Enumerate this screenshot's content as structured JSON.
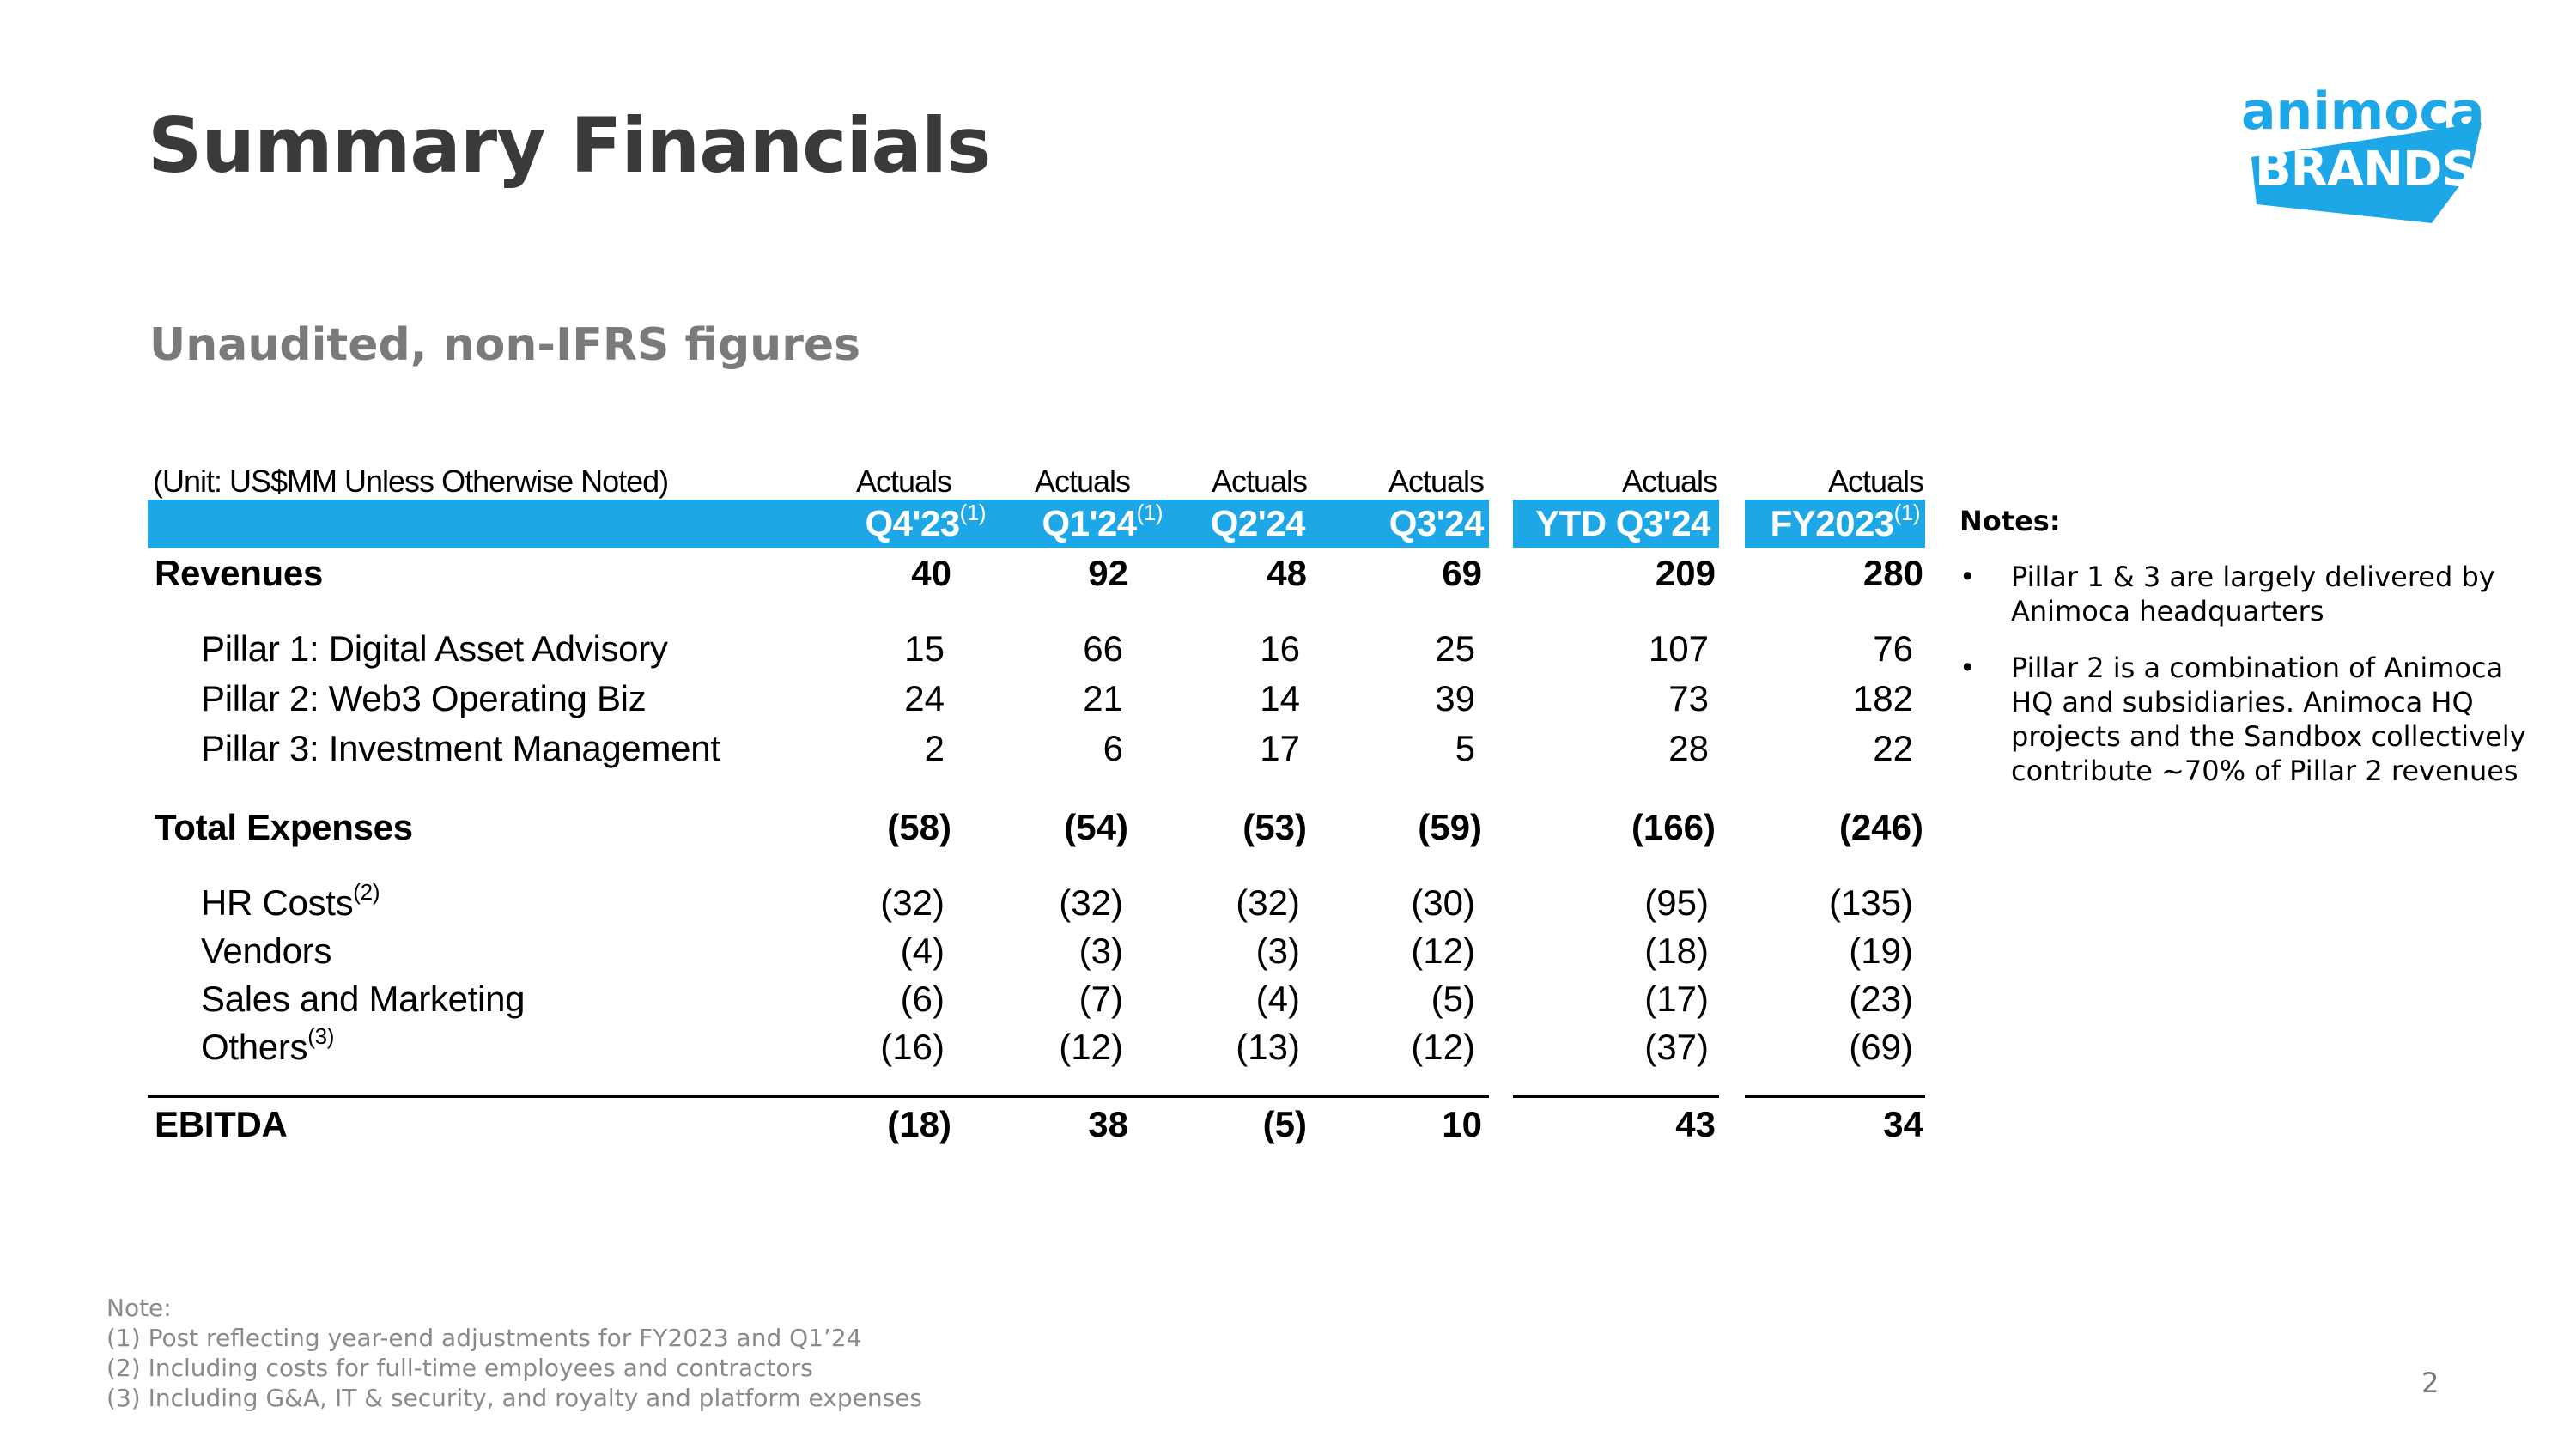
{
  "title": "Summary Financials",
  "subtitle": "Unaudited, non-IFRS figures",
  "logo": {
    "line1": "animoca",
    "line2": "BRANDS",
    "color": "#1ea7e6"
  },
  "table": {
    "unit_label": "(Unit: US$MM Unless Otherwise Noted)",
    "columns": [
      {
        "status": "Actuals",
        "period": "Q4'23",
        "note": "(1)"
      },
      {
        "status": "Actuals",
        "period": "Q1'24",
        "note": "(1)"
      },
      {
        "status": "Actuals",
        "period": "Q2'24",
        "note": ""
      },
      {
        "status": "Actuals",
        "period": "Q3'24",
        "note": ""
      },
      {
        "status": "Actuals",
        "period": "YTD Q3'24",
        "note": ""
      },
      {
        "status": "Actuals",
        "period": "FY2023",
        "note": "(1)"
      }
    ],
    "header_color": "#1ea7e6",
    "rows": [
      {
        "label": "Revenues",
        "note": "",
        "bold": true,
        "values": [
          "40",
          "92",
          "48",
          "69",
          "209",
          "280"
        ]
      },
      {
        "label": "Pillar 1: Digital Asset Advisory",
        "note": "",
        "bold": false,
        "values": [
          "15",
          "66",
          "16",
          "25",
          "107",
          "76"
        ]
      },
      {
        "label": "Pillar 2: Web3 Operating Biz",
        "note": "",
        "bold": false,
        "values": [
          "24",
          "21",
          "14",
          "39",
          "73",
          "182"
        ]
      },
      {
        "label": "Pillar 3: Investment Management",
        "note": "",
        "bold": false,
        "values": [
          "2",
          "6",
          "17",
          "5",
          "28",
          "22"
        ]
      },
      {
        "label": "Total Expenses",
        "note": "",
        "bold": true,
        "values": [
          "(58)",
          "(54)",
          "(53)",
          "(59)",
          "(166)",
          "(246)"
        ]
      },
      {
        "label": "HR Costs",
        "note": "(2)",
        "bold": false,
        "values": [
          "(32)",
          "(32)",
          "(32)",
          "(30)",
          "(95)",
          "(135)"
        ]
      },
      {
        "label": "Vendors",
        "note": "",
        "bold": false,
        "values": [
          "(4)",
          "(3)",
          "(3)",
          "(12)",
          "(18)",
          "(19)"
        ]
      },
      {
        "label": "Sales and Marketing",
        "note": "",
        "bold": false,
        "values": [
          "(6)",
          "(7)",
          "(4)",
          "(5)",
          "(17)",
          "(23)"
        ]
      },
      {
        "label": "Others",
        "note": "(3)",
        "bold": false,
        "values": [
          "(16)",
          "(12)",
          "(13)",
          "(12)",
          "(37)",
          "(69)"
        ]
      },
      {
        "label": "EBITDA",
        "note": "",
        "bold": true,
        "values": [
          "(18)",
          "38",
          "(5)",
          "10",
          "43",
          "34"
        ]
      }
    ]
  },
  "notes": {
    "heading": "Notes:",
    "bullet": "•",
    "items": [
      "Pillar 1 & 3 are largely delivered by Animoca headquarters",
      "Pillar 2 is a combination of Animoca HQ and subsidiaries. Animoca HQ projects and the Sandbox collectively contribute ~70% of Pillar 2 revenues"
    ]
  },
  "footnotes": [
    "Note:",
    "(1) Post reflecting year-end adjustments for FY2023 and Q1’24",
    "(2) Including costs for full-time employees and contractors",
    "(3) Including G&A, IT & security, and royalty and platform expenses"
  ],
  "page_number": "2"
}
